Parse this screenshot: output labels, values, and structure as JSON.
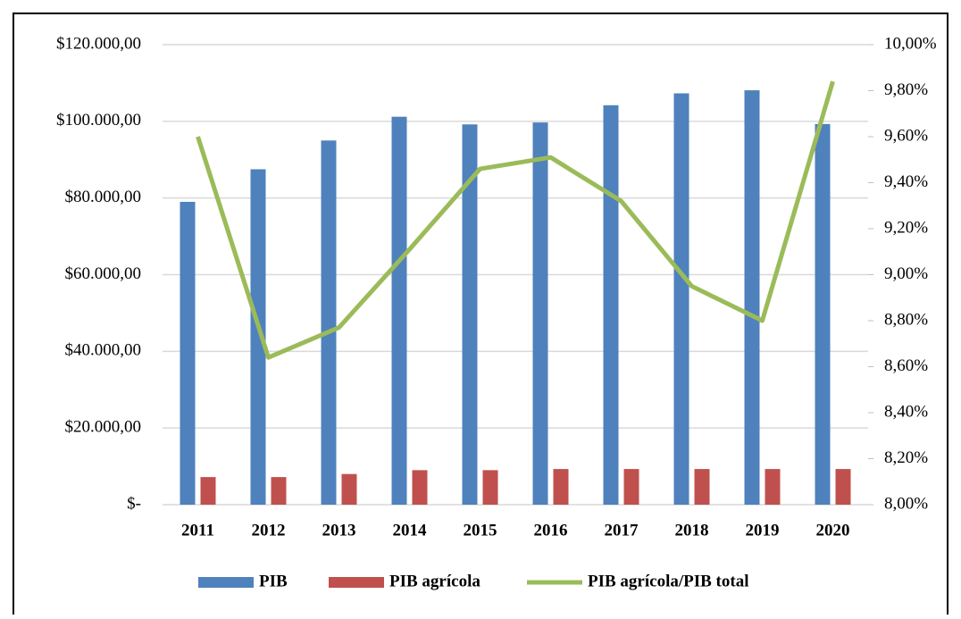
{
  "chart_data": {
    "type": "bar_line",
    "categories": [
      "2011",
      "2012",
      "2013",
      "2014",
      "2015",
      "2016",
      "2017",
      "2018",
      "2019",
      "2020"
    ],
    "series": [
      {
        "name": "PIB",
        "color": "#4f81bd",
        "values": [
          79000,
          87500,
          95000,
          101200,
          99200,
          99700,
          104200,
          107300,
          108100,
          99300
        ]
      },
      {
        "name": "PIB agrícola",
        "color": "#c0504d",
        "values": [
          7200,
          7200,
          8000,
          9000,
          9000,
          9300,
          9300,
          9300,
          9300,
          9300
        ]
      },
      {
        "name": "PIB agrícola/PIB total",
        "color": "#9bbb59",
        "axis": "y2",
        "values": [
          9.6,
          8.64,
          8.77,
          9.11,
          9.46,
          9.51,
          9.32,
          8.95,
          8.8,
          9.84
        ]
      }
    ],
    "ylim": [
      0,
      120000
    ],
    "yticks": [
      {
        "value": 0,
        "label": "$-"
      },
      {
        "value": 20000,
        "label": "$20.000,00"
      },
      {
        "value": 40000,
        "label": "$40.000,00"
      },
      {
        "value": 60000,
        "label": "$60.000,00"
      },
      {
        "value": 80000,
        "label": "$80.000,00"
      },
      {
        "value": 100000,
        "label": "$100.000,00"
      },
      {
        "value": 120000,
        "label": "$120.000,00"
      }
    ],
    "y2lim": [
      8,
      10
    ],
    "y2ticks": [
      {
        "value": 8,
        "label": "8,00%"
      },
      {
        "value": 8.2,
        "label": "8,20%"
      },
      {
        "value": 8.4,
        "label": "8,40%"
      },
      {
        "value": 8.6,
        "label": "8,60%"
      },
      {
        "value": 8.8,
        "label": "8,80%"
      },
      {
        "value": 9,
        "label": "9,00%"
      },
      {
        "value": 9.2,
        "label": "9,20%"
      },
      {
        "value": 9.4,
        "label": "9,40%"
      },
      {
        "value": 9.6,
        "label": "9,60%"
      },
      {
        "value": 9.8,
        "label": "9,80%"
      },
      {
        "value": 10,
        "label": "10,00%"
      }
    ],
    "grid": true,
    "legend": "bottom"
  }
}
